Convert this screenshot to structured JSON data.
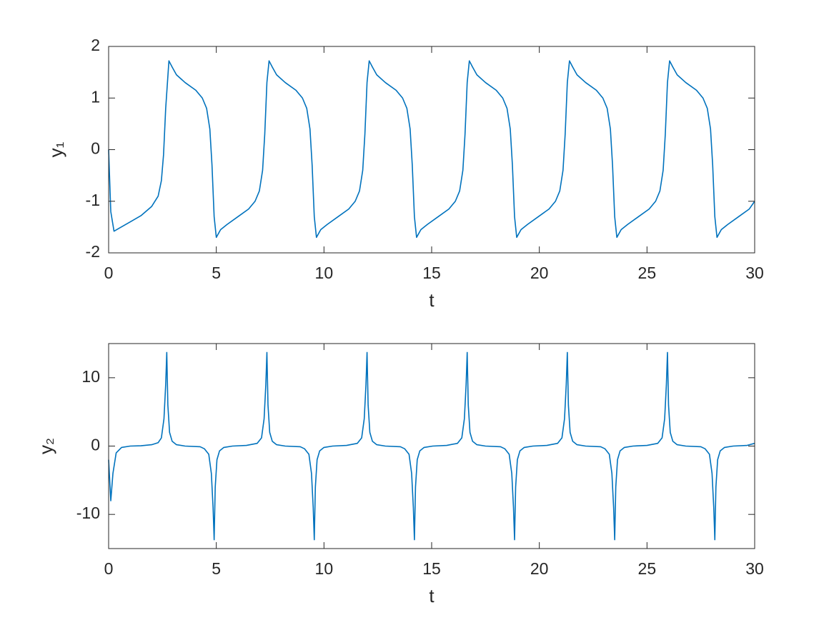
{
  "chart_data": [
    {
      "type": "line",
      "xlabel": "t",
      "ylabel": "y₁",
      "color": "#0072bd",
      "xlim": [
        0,
        30
      ],
      "ylim": [
        -2,
        2
      ],
      "xticks": [
        0,
        5,
        10,
        15,
        20,
        25,
        30
      ],
      "yticks": [
        -2,
        -1,
        0,
        1,
        2
      ],
      "x": [
        0,
        0.1,
        0.25,
        0.5,
        1,
        1.5,
        2,
        2.3,
        2.45,
        2.55,
        2.65,
        2.8,
        2.95,
        3.15,
        3.55,
        4.05,
        4.35,
        4.55,
        4.7,
        4.8,
        4.9,
        5.0,
        5.2,
        5.5,
        6.0,
        6.5,
        6.8,
        7.0,
        7.15,
        7.25,
        7.35,
        7.45,
        7.6,
        7.8,
        8.2,
        8.7,
        9.0,
        9.2,
        9.35,
        9.45,
        9.55,
        9.65,
        9.85,
        10.15,
        10.65,
        11.15,
        11.45,
        11.65,
        11.8,
        11.9,
        12.0,
        12.1,
        12.25,
        12.45,
        12.85,
        13.35,
        13.65,
        13.85,
        14.0,
        14.1,
        14.2,
        14.3,
        14.5,
        14.8,
        15.3,
        15.8,
        16.1,
        16.3,
        16.45,
        16.55,
        16.65,
        16.75,
        16.9,
        17.1,
        17.5,
        18.0,
        18.3,
        18.5,
        18.65,
        18.75,
        18.85,
        18.95,
        19.15,
        19.45,
        19.95,
        20.45,
        20.75,
        20.95,
        21.1,
        21.2,
        21.3,
        21.4,
        21.55,
        21.75,
        22.15,
        22.65,
        22.95,
        23.15,
        23.3,
        23.4,
        23.5,
        23.6,
        23.8,
        24.1,
        24.6,
        25.1,
        25.4,
        25.6,
        25.75,
        25.85,
        25.95,
        26.05,
        26.2,
        26.4,
        26.8,
        27.3,
        27.6,
        27.8,
        27.95,
        28.05,
        28.15,
        28.25,
        28.45,
        28.75,
        29.25,
        29.75,
        30
      ],
      "values": [
        0,
        -1.2,
        -1.58,
        -1.52,
        -1.4,
        -1.28,
        -1.1,
        -0.9,
        -0.6,
        -0.1,
        0.8,
        1.72,
        1.6,
        1.45,
        1.3,
        1.15,
        1.0,
        0.8,
        0.4,
        -0.3,
        -1.3,
        -1.7,
        -1.55,
        -1.45,
        -1.3,
        -1.15,
        -1.0,
        -0.8,
        -0.4,
        0.3,
        1.3,
        1.72,
        1.6,
        1.45,
        1.3,
        1.15,
        1.0,
        0.8,
        0.4,
        -0.3,
        -1.3,
        -1.7,
        -1.55,
        -1.45,
        -1.3,
        -1.15,
        -1.0,
        -0.8,
        -0.4,
        0.3,
        1.3,
        1.72,
        1.6,
        1.45,
        1.3,
        1.15,
        1.0,
        0.8,
        0.4,
        -0.3,
        -1.3,
        -1.7,
        -1.55,
        -1.45,
        -1.3,
        -1.15,
        -1.0,
        -0.8,
        -0.4,
        0.3,
        1.3,
        1.72,
        1.6,
        1.45,
        1.3,
        1.15,
        1.0,
        0.8,
        0.4,
        -0.3,
        -1.3,
        -1.7,
        -1.55,
        -1.45,
        -1.3,
        -1.15,
        -1.0,
        -0.8,
        -0.4,
        0.3,
        1.3,
        1.72,
        1.6,
        1.45,
        1.3,
        1.15,
        1.0,
        0.8,
        0.4,
        -0.3,
        -1.3,
        -1.7,
        -1.55,
        -1.45,
        -1.3,
        -1.15,
        -1.0,
        -0.8,
        -0.4,
        0.3,
        1.3,
        1.72,
        1.6,
        1.45,
        1.3,
        1.15,
        1.0,
        0.8,
        0.4,
        -0.3,
        -1.3,
        -1.7,
        -1.55,
        -1.45,
        -1.3,
        -1.15,
        -1.0
      ]
    },
    {
      "type": "line",
      "xlabel": "t",
      "ylabel": "y₂",
      "color": "#0072bd",
      "xlim": [
        0,
        30
      ],
      "ylim": [
        -15,
        15
      ],
      "xticks": [
        0,
        5,
        10,
        15,
        20,
        25,
        30
      ],
      "yticks": [
        -10,
        0,
        10
      ],
      "x": [
        0,
        0.1,
        0.2,
        0.35,
        0.6,
        1.0,
        1.5,
        2.0,
        2.3,
        2.45,
        2.57,
        2.65,
        2.7,
        2.75,
        2.83,
        2.95,
        3.15,
        3.55,
        4.25,
        4.45,
        4.65,
        4.77,
        4.85,
        4.9,
        4.95,
        5.03,
        5.15,
        5.35,
        5.75,
        6.4,
        6.9,
        7.1,
        7.22,
        7.3,
        7.35,
        7.4,
        7.48,
        7.6,
        7.8,
        8.2,
        8.9,
        9.1,
        9.3,
        9.42,
        9.5,
        9.55,
        9.6,
        9.68,
        9.8,
        10.0,
        10.4,
        11.05,
        11.55,
        11.75,
        11.87,
        11.95,
        12.0,
        12.05,
        12.13,
        12.25,
        12.45,
        12.85,
        13.55,
        13.75,
        13.95,
        14.07,
        14.15,
        14.2,
        14.25,
        14.33,
        14.45,
        14.65,
        15.05,
        15.7,
        16.2,
        16.4,
        16.52,
        16.6,
        16.65,
        16.7,
        16.78,
        16.9,
        17.1,
        17.5,
        18.2,
        18.4,
        18.6,
        18.72,
        18.8,
        18.85,
        18.9,
        18.98,
        19.1,
        19.3,
        19.7,
        20.35,
        20.85,
        21.05,
        21.17,
        21.25,
        21.3,
        21.35,
        21.43,
        21.55,
        21.75,
        22.15,
        22.85,
        23.05,
        23.25,
        23.37,
        23.45,
        23.5,
        23.55,
        23.63,
        23.75,
        23.95,
        24.35,
        25.0,
        25.5,
        25.7,
        25.82,
        25.9,
        25.95,
        26.0,
        26.08,
        26.2,
        26.4,
        26.8,
        27.5,
        27.7,
        27.9,
        28.02,
        28.1,
        28.15,
        28.2,
        28.28,
        28.4,
        28.6,
        29.0,
        29.65,
        30
      ],
      "values": [
        -2,
        -8,
        -4,
        -1,
        -0.2,
        0,
        0.05,
        0.2,
        0.5,
        1.2,
        4,
        9,
        13.7,
        6,
        2,
        0.7,
        0.2,
        0,
        -0.1,
        -0.4,
        -1.2,
        -4,
        -9,
        -13.7,
        -6,
        -2,
        -0.7,
        -0.2,
        0,
        0.1,
        0.4,
        1.2,
        4,
        9,
        13.7,
        6,
        2,
        0.7,
        0.2,
        0,
        -0.1,
        -0.4,
        -1.2,
        -4,
        -9,
        -13.7,
        -6,
        -2,
        -0.7,
        -0.2,
        0,
        0.1,
        0.4,
        1.2,
        4,
        9,
        13.7,
        6,
        2,
        0.7,
        0.2,
        0,
        -0.1,
        -0.4,
        -1.2,
        -4,
        -9,
        -13.7,
        -6,
        -2,
        -0.7,
        -0.2,
        0,
        0.1,
        0.4,
        1.2,
        4,
        9,
        13.7,
        6,
        2,
        0.7,
        0.2,
        0,
        -0.1,
        -0.4,
        -1.2,
        -4,
        -9,
        -13.7,
        -6,
        -2,
        -0.7,
        -0.2,
        0,
        0.1,
        0.4,
        1.2,
        4,
        9,
        13.7,
        6,
        2,
        0.7,
        0.2,
        0,
        -0.1,
        -0.4,
        -1.2,
        -4,
        -9,
        -13.7,
        -6,
        -2,
        -0.7,
        -0.2,
        0,
        0.1,
        0.4,
        1.2,
        4,
        9,
        13.7,
        6,
        2,
        0.7,
        0.2,
        0,
        -0.1,
        -0.4,
        -1.2,
        -4,
        -9,
        -13.7,
        -6,
        -2,
        -0.7,
        -0.2,
        0,
        0.1,
        0.4
      ]
    }
  ]
}
